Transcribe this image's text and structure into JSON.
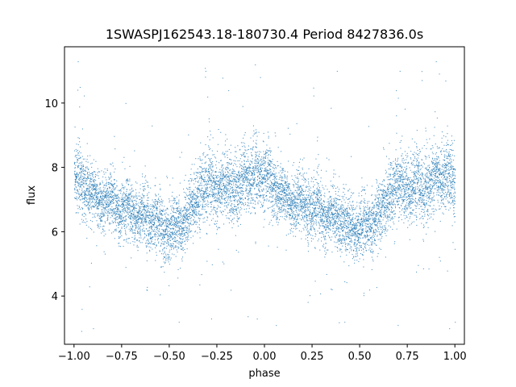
{
  "chart_data": {
    "type": "scatter",
    "title": "1SWASPJ162543.18-180730.4 Period 8427836.0s",
    "xlabel": "phase",
    "ylabel": "flux",
    "xlim": [
      -1.05,
      1.05
    ],
    "ylim": [
      2.5,
      11.75
    ],
    "xticks": [
      -1.0,
      -0.75,
      -0.5,
      -0.25,
      0.0,
      0.25,
      0.5,
      0.75,
      1.0
    ],
    "xtick_labels": [
      "−1.00",
      "−0.75",
      "−0.50",
      "−0.25",
      "0.00",
      "0.25",
      "0.50",
      "0.75",
      "1.00"
    ],
    "yticks": [
      4,
      6,
      8,
      10
    ],
    "ytick_labels": [
      "4",
      "6",
      "8",
      "10"
    ],
    "grid": false,
    "legend": "none",
    "point_color": "#1f77b4",
    "series": [
      {
        "profile_x": [
          0.0,
          0.02,
          0.04,
          0.06,
          0.08,
          0.1,
          0.12,
          0.14,
          0.16,
          0.18,
          0.2,
          0.22,
          0.24,
          0.26,
          0.28,
          0.3,
          0.32,
          0.34,
          0.36,
          0.38,
          0.4,
          0.42,
          0.44,
          0.46,
          0.48,
          0.5,
          0.52,
          0.54,
          0.56,
          0.58,
          0.6,
          0.62,
          0.64,
          0.66,
          0.68,
          0.7,
          0.72,
          0.74,
          0.76,
          0.78,
          0.8,
          0.82,
          0.84,
          0.86,
          0.88,
          0.9,
          0.92,
          0.94,
          0.96,
          0.98,
          1.0
        ],
        "profile_y": [
          7.9,
          7.7,
          7.5,
          7.3,
          7.2,
          7.3,
          7.0,
          6.8,
          6.9,
          7.0,
          7.1,
          6.7,
          6.5,
          6.8,
          6.9,
          6.6,
          6.3,
          6.5,
          6.7,
          6.4,
          6.2,
          6.3,
          6.4,
          6.1,
          6.0,
          6.1,
          6.2,
          6.3,
          6.0,
          6.4,
          6.6,
          6.9,
          7.0,
          7.2,
          7.3,
          7.5,
          7.6,
          7.3,
          7.2,
          7.5,
          7.6,
          7.3,
          7.2,
          7.4,
          7.7,
          7.8,
          7.6,
          7.7,
          7.9,
          7.6,
          7.5
        ],
        "profile_spread": [
          0.8,
          0.8,
          0.7,
          0.7,
          0.6,
          0.6,
          0.6,
          0.6,
          0.7,
          0.7,
          0.7,
          0.7,
          0.7,
          0.7,
          0.7,
          0.7,
          0.7,
          0.7,
          0.7,
          0.7,
          0.7,
          0.7,
          0.7,
          0.7,
          0.7,
          0.7,
          0.7,
          0.7,
          0.7,
          0.7,
          0.7,
          0.7,
          0.7,
          0.8,
          0.8,
          0.8,
          0.8,
          0.8,
          0.8,
          0.8,
          0.8,
          0.8,
          0.8,
          0.8,
          0.8,
          0.8,
          0.8,
          0.8,
          0.8,
          0.8,
          0.8
        ],
        "outliers": [
          [
            -0.98,
            11.3
          ],
          [
            -0.97,
            10.5
          ],
          [
            -0.96,
            3.6
          ],
          [
            -0.92,
            4.3
          ],
          [
            -0.9,
            3.0
          ],
          [
            -0.62,
            4.2
          ],
          [
            -0.31,
            11.0
          ],
          [
            -0.3,
            10.2
          ],
          [
            -0.28,
            3.3
          ],
          [
            -0.19,
            10.4
          ],
          [
            -0.05,
            11.2
          ],
          [
            -0.04,
            3.3
          ],
          [
            0.06,
            3.1
          ],
          [
            0.38,
            11.0
          ],
          [
            0.42,
            3.2
          ],
          [
            0.69,
            10.4
          ],
          [
            0.7,
            3.1
          ],
          [
            0.71,
            11.0
          ],
          [
            0.9,
            11.3
          ],
          [
            0.95,
            10.7
          ],
          [
            0.97,
            3.0
          ],
          [
            1.0,
            3.2
          ],
          [
            -0.73,
            10.0
          ],
          [
            -0.45,
            3.2
          ],
          [
            0.55,
            4.2
          ]
        ]
      }
    ]
  }
}
